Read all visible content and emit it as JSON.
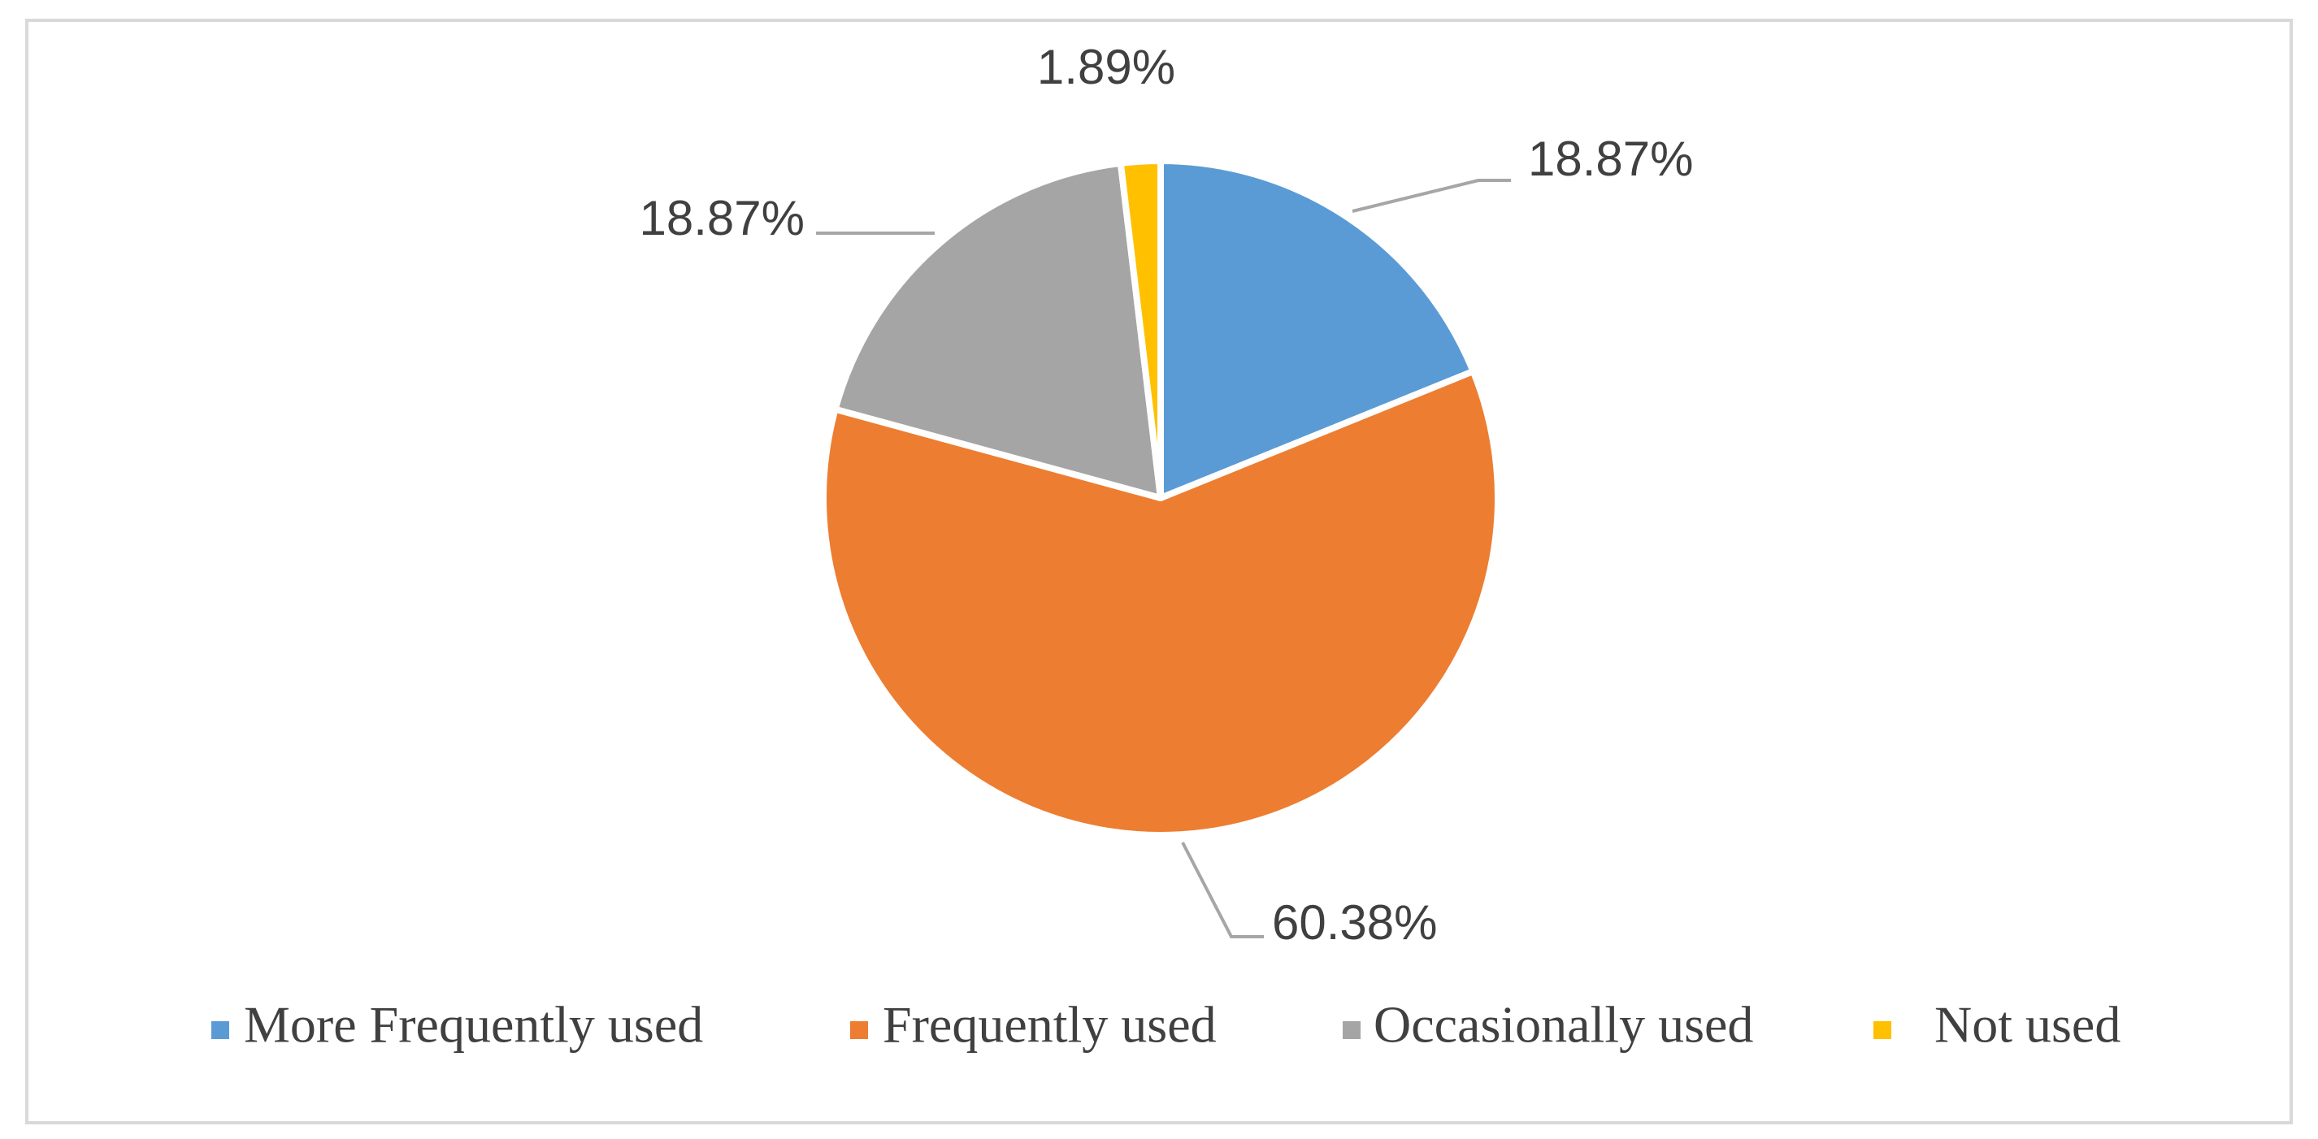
{
  "chart_data": {
    "type": "pie",
    "categories": [
      "More Frequently used",
      "Frequently used",
      "Occasionally used",
      "Not used"
    ],
    "values": [
      18.87,
      60.38,
      18.87,
      1.89
    ],
    "value_labels": [
      "18.87%",
      "60.38%",
      "18.87%",
      "1.89%"
    ],
    "colors": [
      "#5b9bd5",
      "#ed7d31",
      "#a5a5a5",
      "#ffc000"
    ],
    "legend": "bottom"
  }
}
